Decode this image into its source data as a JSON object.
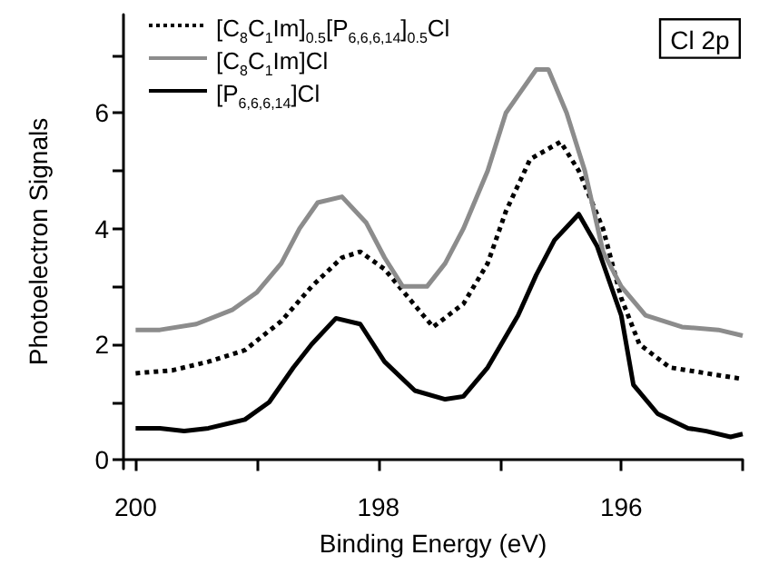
{
  "chart_data": {
    "type": "line",
    "xlabel": "Binding Energy (eV)",
    "ylabel": "Photoelectron Signals",
    "xlim": [
      200.1,
      195
    ],
    "ylim": [
      -0.15,
      7.7
    ],
    "xticks": [
      200,
      {
        "value": 199,
        "label": null
      },
      198,
      {
        "value": 197,
        "label": null
      },
      196,
      {
        "value": 195,
        "label": null
      }
    ],
    "yticks": [
      0,
      {
        "value": 1,
        "label": null
      },
      2,
      {
        "value": 3,
        "label": null
      },
      4,
      {
        "value": 5,
        "label": null
      },
      6,
      {
        "value": 7,
        "label": null
      }
    ],
    "grid": false,
    "legend": "top left",
    "marker": "none",
    "annotations": [
      "Cl 2p"
    ],
    "series": [
      {
        "name": "[C$_{8}$C$_{1}$Im]$_{0.5}$[P$_{6,6,6,14}$]$_{0.5}$Cl",
        "color": "#000000",
        "line_style": "dotted",
        "x": [
          200,
          199.7,
          199.4,
          199.1,
          198.8,
          198.55,
          198.3,
          198.15,
          197.95,
          197.75,
          197.55,
          197.3,
          197.1,
          196.95,
          196.75,
          196.5,
          196.35,
          196.15,
          196.0,
          195.85,
          195.6,
          195.3,
          195.0
        ],
        "values": [
          1.5,
          1.55,
          1.7,
          1.9,
          2.4,
          3.0,
          3.5,
          3.6,
          3.3,
          2.8,
          2.3,
          2.7,
          3.4,
          4.3,
          5.2,
          5.5,
          5.0,
          4.0,
          2.8,
          2.0,
          1.6,
          1.5,
          1.4
        ]
      },
      {
        "name": "[C$_{8}$C$_{1}$Im]Cl",
        "color": "#8c8c8c",
        "line_style": "solid",
        "x": [
          200,
          199.8,
          199.5,
          199.2,
          199,
          198.8,
          198.65,
          198.5,
          198.3,
          198.1,
          197.95,
          197.8,
          197.6,
          197.45,
          197.3,
          197.1,
          196.95,
          196.85,
          196.7,
          196.6,
          196.45,
          196.3,
          196.15,
          196.0,
          195.8,
          195.5,
          195.2,
          195.0
        ],
        "values": [
          2.25,
          2.25,
          2.35,
          2.6,
          2.9,
          3.4,
          4.0,
          4.45,
          4.55,
          4.1,
          3.5,
          3.0,
          3.0,
          3.4,
          4.0,
          5.0,
          6.0,
          6.3,
          6.75,
          6.75,
          6.0,
          5.0,
          3.6,
          3.0,
          2.5,
          2.3,
          2.25,
          2.15
        ]
      },
      {
        "name": "[P$_{6,6,6,14}$]Cl",
        "color": "#000000",
        "line_style": "solid",
        "x": [
          200,
          199.8,
          199.6,
          199.4,
          199.1,
          198.9,
          198.7,
          198.55,
          198.35,
          198.15,
          197.95,
          197.7,
          197.45,
          197.3,
          197.1,
          196.85,
          196.7,
          196.55,
          196.35,
          196.2,
          196.0,
          195.9,
          195.7,
          195.45,
          195.3,
          195.1,
          195.0
        ],
        "values": [
          0.55,
          0.55,
          0.5,
          0.55,
          0.7,
          1.0,
          1.6,
          2.0,
          2.45,
          2.35,
          1.7,
          1.2,
          1.05,
          1.1,
          1.6,
          2.5,
          3.2,
          3.8,
          4.25,
          3.7,
          2.5,
          1.3,
          0.8,
          0.55,
          0.5,
          0.4,
          0.45
        ]
      }
    ]
  }
}
